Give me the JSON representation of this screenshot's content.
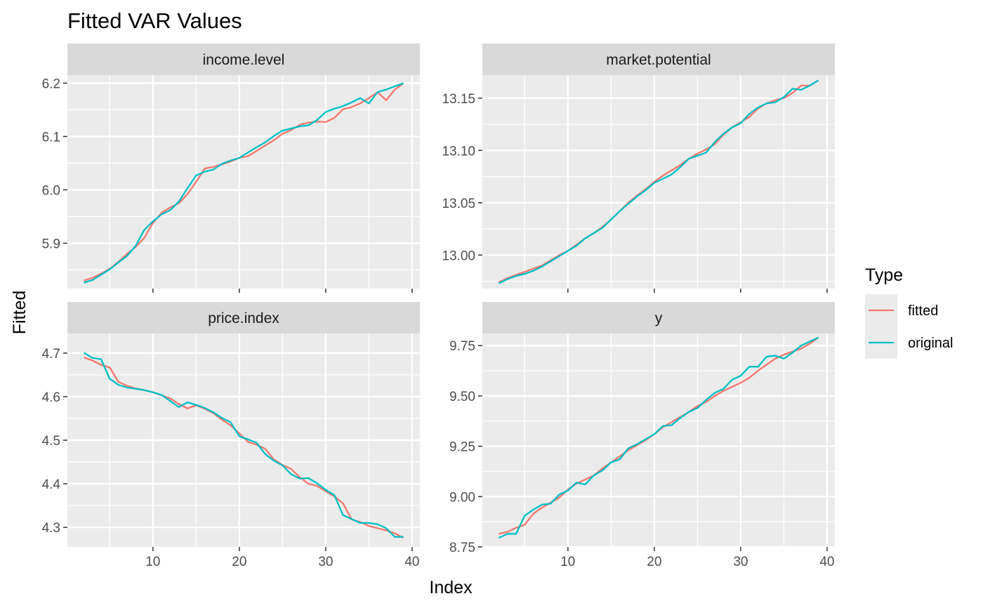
{
  "chart_data": {
    "type": "line",
    "title": "Fitted VAR Values",
    "xlabel": "Index",
    "ylabel": "Fitted",
    "legend": {
      "title": "Type",
      "position": "right"
    },
    "grid": true,
    "colors": {
      "fitted": "#F8766D",
      "original": "#00BFC4",
      "panel_bg": "#EBEBEB",
      "strip_bg": "#D9D9D9",
      "grid": "#FFFFFF"
    },
    "x": [
      2,
      3,
      4,
      5,
      6,
      7,
      8,
      9,
      10,
      11,
      12,
      13,
      14,
      15,
      16,
      17,
      18,
      19,
      20,
      21,
      22,
      23,
      24,
      25,
      26,
      27,
      28,
      29,
      30,
      31,
      32,
      33,
      34,
      35,
      36,
      37,
      38,
      39
    ],
    "xlim": [
      0.1,
      40.9
    ],
    "xticks": [
      10,
      20,
      30,
      40
    ],
    "panels": [
      {
        "name": "income.level",
        "ylim": [
          5.815,
          6.215
        ],
        "yticks": [
          5.9,
          6.0,
          6.1,
          6.2
        ],
        "ytick_labels": [
          "5.9",
          "6.0",
          "6.1",
          "6.2"
        ],
        "series": [
          {
            "name": "fitted",
            "values": [
              5.83,
              5.835,
              5.843,
              5.852,
              5.865,
              5.88,
              5.893,
              5.91,
              5.938,
              5.957,
              5.967,
              5.975,
              5.992,
              6.015,
              6.04,
              6.043,
              6.048,
              6.053,
              6.06,
              6.063,
              6.073,
              6.083,
              6.093,
              6.105,
              6.112,
              6.122,
              6.126,
              6.128,
              6.127,
              6.135,
              6.151,
              6.155,
              6.162,
              6.172,
              6.183,
              6.168,
              6.188,
              6.2
            ]
          },
          {
            "name": "original",
            "values": [
              5.826,
              5.831,
              5.841,
              5.851,
              5.864,
              5.876,
              5.895,
              5.925,
              5.941,
              5.954,
              5.962,
              5.978,
              6.003,
              6.027,
              6.034,
              6.038,
              6.049,
              6.055,
              6.06,
              6.07,
              6.08,
              6.089,
              6.101,
              6.111,
              6.115,
              6.119,
              6.121,
              6.131,
              6.146,
              6.152,
              6.157,
              6.164,
              6.172,
              6.162,
              6.183,
              6.188,
              6.194,
              6.2
            ]
          }
        ]
      },
      {
        "name": "market.potential",
        "ylim": [
          12.968,
          13.172
        ],
        "yticks": [
          13.0,
          13.05,
          13.1,
          13.15
        ],
        "ytick_labels": [
          "13.00",
          "13.05",
          "13.10",
          "13.15"
        ],
        "series": [
          {
            "name": "fitted",
            "values": [
              12.974,
              12.978,
              12.981,
              12.984,
              12.987,
              12.99,
              12.995,
              13.0,
              13.004,
              13.01,
              13.016,
              13.021,
              13.027,
              13.034,
              13.042,
              13.05,
              13.057,
              13.063,
              13.07,
              13.076,
              13.081,
              13.086,
              13.092,
              13.097,
              13.101,
              13.106,
              13.115,
              13.122,
              13.127,
              13.132,
              13.14,
              13.145,
              13.148,
              13.15,
              13.155,
              13.162,
              13.162,
              13.167
            ]
          },
          {
            "name": "original",
            "values": [
              12.973,
              12.977,
              12.98,
              12.982,
              12.985,
              12.989,
              12.994,
              12.999,
              13.004,
              13.009,
              13.016,
              13.021,
              13.026,
              13.034,
              13.042,
              13.049,
              13.056,
              13.062,
              13.069,
              13.073,
              13.077,
              13.084,
              13.092,
              13.095,
              13.098,
              13.108,
              13.116,
              13.122,
              13.126,
              13.135,
              13.141,
              13.145,
              13.146,
              13.151,
              13.159,
              13.158,
              13.162,
              13.167
            ]
          }
        ]
      },
      {
        "name": "price.index",
        "ylim": [
          4.255,
          4.745
        ],
        "yticks": [
          4.3,
          4.4,
          4.5,
          4.6,
          4.7
        ],
        "ytick_labels": [
          "4.3",
          "4.4",
          "4.5",
          "4.6",
          "4.7"
        ],
        "series": [
          {
            "name": "fitted",
            "values": [
              4.69,
              4.683,
              4.673,
              4.667,
              4.634,
              4.625,
              4.619,
              4.615,
              4.61,
              4.603,
              4.596,
              4.583,
              4.573,
              4.58,
              4.572,
              4.562,
              4.547,
              4.534,
              4.516,
              4.496,
              4.49,
              4.48,
              4.456,
              4.443,
              4.434,
              4.415,
              4.4,
              4.395,
              4.383,
              4.371,
              4.355,
              4.318,
              4.312,
              4.303,
              4.298,
              4.293,
              4.286,
              4.276
            ]
          },
          {
            "name": "original",
            "values": [
              4.701,
              4.689,
              4.686,
              4.641,
              4.627,
              4.621,
              4.618,
              4.615,
              4.61,
              4.604,
              4.59,
              4.576,
              4.587,
              4.581,
              4.574,
              4.564,
              4.551,
              4.541,
              4.509,
              4.502,
              4.494,
              4.468,
              4.453,
              4.442,
              4.422,
              4.412,
              4.413,
              4.401,
              4.386,
              4.374,
              4.328,
              4.319,
              4.31,
              4.31,
              4.307,
              4.298,
              4.278,
              4.278
            ]
          }
        ]
      },
      {
        "name": "y",
        "ylim": [
          8.75,
          9.81
        ],
        "yticks": [
          8.75,
          9.0,
          9.25,
          9.5,
          9.75
        ],
        "ytick_labels": [
          "8.75",
          "9.00",
          "9.25",
          "9.50",
          "9.75"
        ],
        "series": [
          {
            "name": "fitted",
            "values": [
              8.815,
              8.825,
              8.845,
              8.86,
              8.915,
              8.945,
              8.97,
              8.995,
              9.035,
              9.065,
              9.085,
              9.105,
              9.14,
              9.17,
              9.2,
              9.23,
              9.255,
              9.28,
              9.31,
              9.345,
              9.37,
              9.395,
              9.42,
              9.45,
              9.47,
              9.5,
              9.525,
              9.545,
              9.565,
              9.59,
              9.625,
              9.655,
              9.685,
              9.705,
              9.72,
              9.735,
              9.76,
              9.79
            ]
          },
          {
            "name": "original",
            "values": [
              8.795,
              8.815,
              8.815,
              8.905,
              8.935,
              8.96,
              8.965,
              9.01,
              9.03,
              9.07,
              9.06,
              9.105,
              9.13,
              9.17,
              9.185,
              9.24,
              9.26,
              9.285,
              9.31,
              9.35,
              9.355,
              9.39,
              9.42,
              9.44,
              9.48,
              9.515,
              9.535,
              9.58,
              9.6,
              9.645,
              9.645,
              9.695,
              9.7,
              9.685,
              9.715,
              9.75,
              9.77,
              9.79
            ]
          }
        ]
      }
    ]
  }
}
